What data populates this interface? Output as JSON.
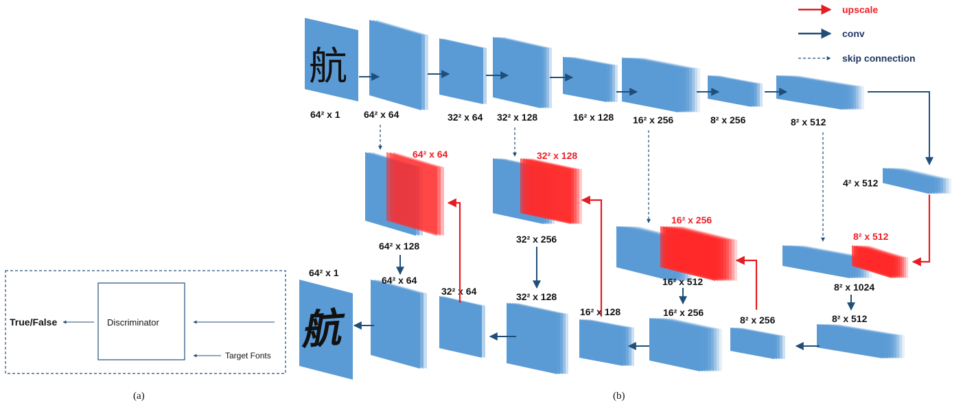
{
  "panel_a": {
    "output_label": "True/False",
    "discriminator_label": "Discriminator",
    "input_label": "Target Fonts",
    "caption": "(a)"
  },
  "panel_b": {
    "caption": "(b)",
    "input_glyph": "航",
    "output_glyph": "航",
    "legend": {
      "upscale": "upscale",
      "conv": "conv",
      "skip": "skip connection"
    },
    "colors": {
      "block_blue": "#5b9bd5",
      "block_red": "#ff2a2a",
      "conv_arrow": "#1f4e79",
      "upscale_arrow": "#e31c23"
    },
    "encoder_labels": [
      "64² x 1",
      "64² x 64",
      "32² x 64",
      "32² x 128",
      "16² x 128",
      "16² x 256",
      "8² x 256",
      "8² x 512"
    ],
    "bottleneck_label": "4² x 512",
    "upscale_labels": [
      "64² x 64",
      "32² x 128",
      "16² x 256",
      "8² x 512"
    ],
    "concat_labels": [
      "64² x 128",
      "32² x 256",
      "16² x 512",
      "8² x 1024"
    ],
    "decoder_labels": [
      "64² x 1",
      "64² x 64",
      "32² x 64",
      "32² x 128",
      "16² x 128",
      "16² x 256",
      "8² x 256",
      "8² x 512"
    ]
  }
}
